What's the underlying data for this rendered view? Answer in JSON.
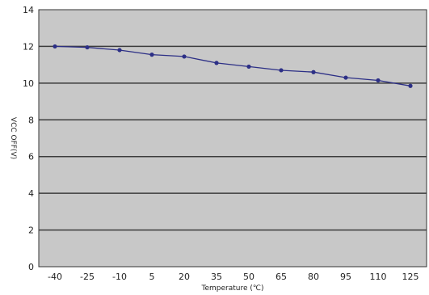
{
  "colors": {
    "plot_background": "#c8c8c8",
    "gridline": "#3c3c3c",
    "series": "#2c2f86",
    "axis": "#333333"
  },
  "chart_data": {
    "type": "line",
    "title": "",
    "xlabel": "Temperature (℃)",
    "ylabel": "VCC OFF(V)",
    "x_categories": [
      "-40",
      "-25",
      "-10",
      "5",
      "20",
      "35",
      "50",
      "65",
      "80",
      "95",
      "110",
      "125"
    ],
    "ylim": [
      0,
      14
    ],
    "y_ticks": [
      0,
      2,
      4,
      6,
      8,
      10,
      12,
      14
    ],
    "grid": true,
    "legend": "none",
    "series": [
      {
        "x": [
          -45,
          -30,
          -15,
          0,
          15,
          30,
          45,
          60,
          75,
          90,
          105,
          120
        ],
        "y": [
          12.0,
          11.95,
          11.8,
          11.55,
          11.45,
          11.1,
          10.9,
          10.7,
          10.6,
          10.3,
          10.15,
          9.85
        ]
      }
    ]
  }
}
